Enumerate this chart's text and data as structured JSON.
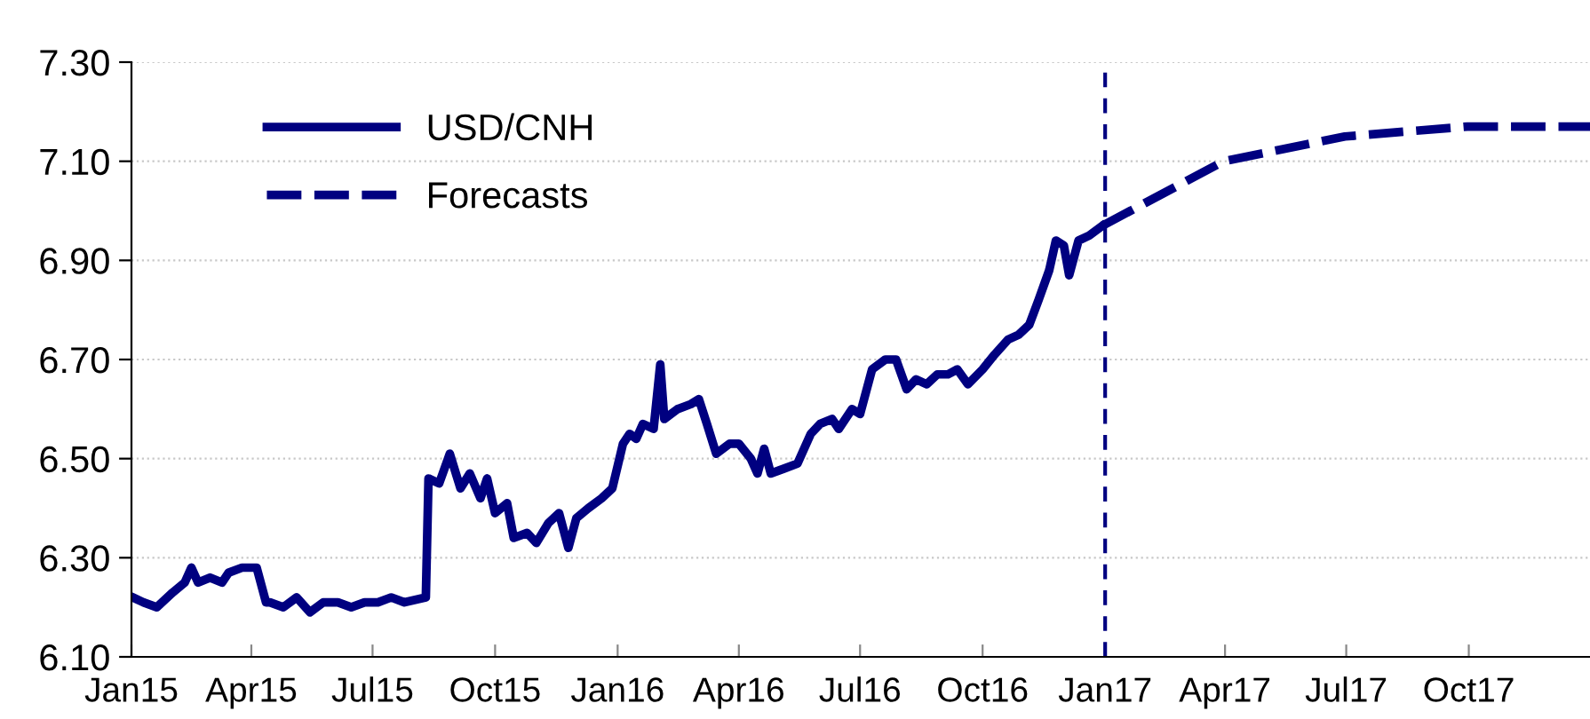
{
  "chart_data": {
    "type": "line",
    "legend": "top left",
    "grid": "y",
    "marker": "none",
    "xlim": [
      "2015-01-01",
      "2017-12-31"
    ],
    "ylim": [
      6.1,
      7.3
    ],
    "yticks": [
      {
        "value": 6.1,
        "label": "6.10"
      },
      {
        "value": 6.3,
        "label": "6.30"
      },
      {
        "value": 6.5,
        "label": "6.50"
      },
      {
        "value": 6.7,
        "label": "6.70"
      },
      {
        "value": 6.9,
        "label": "6.90"
      },
      {
        "value": 7.1,
        "label": "7.10"
      },
      {
        "value": 7.3,
        "label": "7.30"
      }
    ],
    "xticks": [
      {
        "value": "2015-01-01",
        "label": "Jan15"
      },
      {
        "value": "2015-04-01",
        "label": "Apr15"
      },
      {
        "value": "2015-07-01",
        "label": "Jul15"
      },
      {
        "value": "2015-10-01",
        "label": "Oct15"
      },
      {
        "value": "2016-01-01",
        "label": "Jan16"
      },
      {
        "value": "2016-04-01",
        "label": "Apr16"
      },
      {
        "value": "2016-07-01",
        "label": "Jul16"
      },
      {
        "value": "2016-10-01",
        "label": "Oct16"
      },
      {
        "value": "2017-01-01",
        "label": "Jan17"
      },
      {
        "value": "2017-04-01",
        "label": "Apr17"
      },
      {
        "value": "2017-07-01",
        "label": "Jul17"
      },
      {
        "value": "2017-10-01",
        "label": "Oct17"
      }
    ],
    "ref_lines": [
      {
        "axis": "x",
        "value": "2017-01-01",
        "color": "#000080",
        "line_style": "dashed"
      }
    ],
    "series": [
      {
        "name": "USD/CNH",
        "color": "#000080",
        "line_style": "solid",
        "x": [
          "2015-01-02",
          "2015-01-10",
          "2015-01-20",
          "2015-02-01",
          "2015-02-10",
          "2015-02-15",
          "2015-02-20",
          "2015-03-01",
          "2015-03-10",
          "2015-03-15",
          "2015-03-25",
          "2015-04-05",
          "2015-04-12",
          "2015-04-15",
          "2015-04-25",
          "2015-05-05",
          "2015-05-15",
          "2015-05-25",
          "2015-06-05",
          "2015-06-15",
          "2015-06-25",
          "2015-07-05",
          "2015-07-15",
          "2015-07-25",
          "2015-08-10",
          "2015-08-12",
          "2015-08-20",
          "2015-08-28",
          "2015-09-05",
          "2015-09-12",
          "2015-09-20",
          "2015-09-25",
          "2015-10-01",
          "2015-10-10",
          "2015-10-15",
          "2015-10-25",
          "2015-11-01",
          "2015-11-10",
          "2015-11-18",
          "2015-11-25",
          "2015-12-01",
          "2015-12-10",
          "2015-12-20",
          "2015-12-28",
          "2016-01-05",
          "2016-01-10",
          "2016-01-15",
          "2016-01-20",
          "2016-01-28",
          "2016-02-02",
          "2016-02-05",
          "2016-02-15",
          "2016-02-25",
          "2016-03-02",
          "2016-03-08",
          "2016-03-15",
          "2016-03-25",
          "2016-04-01",
          "2016-04-10",
          "2016-04-15",
          "2016-04-20",
          "2016-04-25",
          "2016-05-05",
          "2016-05-15",
          "2016-05-25",
          "2016-06-01",
          "2016-06-10",
          "2016-06-15",
          "2016-06-25",
          "2016-07-01",
          "2016-07-10",
          "2016-07-20",
          "2016-07-28",
          "2016-08-05",
          "2016-08-12",
          "2016-08-20",
          "2016-08-28",
          "2016-09-05",
          "2016-09-12",
          "2016-09-20",
          "2016-10-01",
          "2016-10-10",
          "2016-10-20",
          "2016-10-28",
          "2016-11-05",
          "2016-11-12",
          "2016-11-20",
          "2016-11-25",
          "2016-12-01",
          "2016-12-05",
          "2016-12-12",
          "2016-12-20",
          "2016-12-30"
        ],
        "values": [
          6.22,
          6.21,
          6.2,
          6.23,
          6.25,
          6.28,
          6.25,
          6.26,
          6.25,
          6.27,
          6.28,
          6.28,
          6.21,
          6.21,
          6.2,
          6.22,
          6.19,
          6.21,
          6.21,
          6.2,
          6.21,
          6.21,
          6.22,
          6.21,
          6.22,
          6.46,
          6.45,
          6.51,
          6.44,
          6.47,
          6.42,
          6.46,
          6.39,
          6.41,
          6.34,
          6.35,
          6.33,
          6.37,
          6.39,
          6.32,
          6.38,
          6.4,
          6.42,
          6.44,
          6.53,
          6.55,
          6.54,
          6.57,
          6.56,
          6.69,
          6.58,
          6.6,
          6.61,
          6.62,
          6.57,
          6.51,
          6.53,
          6.53,
          6.5,
          6.47,
          6.52,
          6.47,
          6.48,
          6.49,
          6.55,
          6.57,
          6.58,
          6.56,
          6.6,
          6.59,
          6.68,
          6.7,
          6.7,
          6.64,
          6.66,
          6.65,
          6.67,
          6.67,
          6.68,
          6.65,
          6.68,
          6.71,
          6.74,
          6.75,
          6.77,
          6.82,
          6.88,
          6.94,
          6.93,
          6.87,
          6.94,
          6.95,
          6.97
        ]
      },
      {
        "name": "Forecasts",
        "color": "#000080",
        "line_style": "dashed",
        "x": [
          "2016-12-30",
          "2017-03-31",
          "2017-06-30",
          "2017-09-30",
          "2017-12-31"
        ],
        "values": [
          6.97,
          7.1,
          7.15,
          7.17,
          7.17
        ]
      }
    ]
  }
}
